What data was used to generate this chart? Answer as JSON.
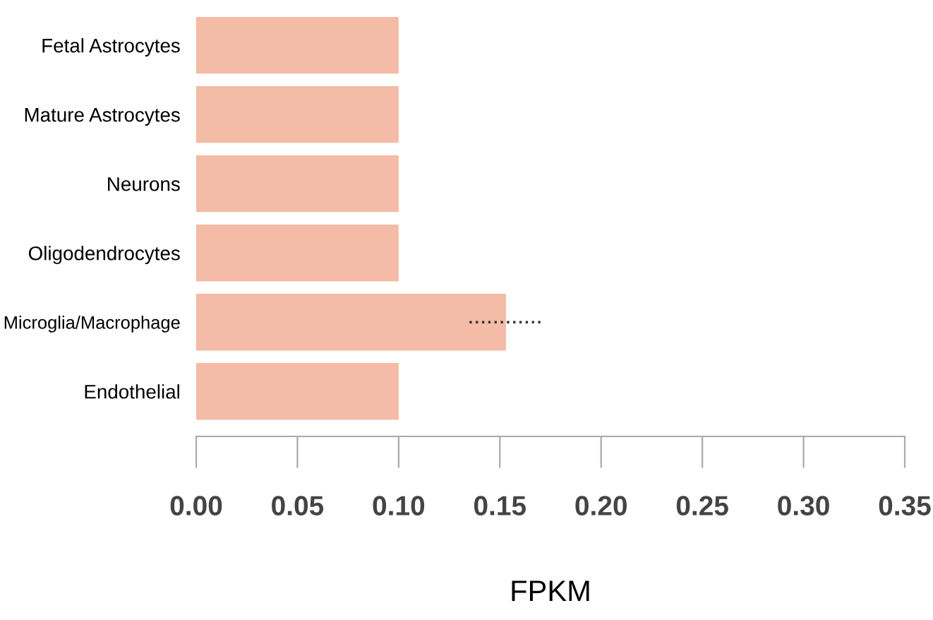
{
  "chart_data": {
    "type": "bar",
    "orientation": "horizontal",
    "xlabel": "FPKM",
    "categories": [
      "Fetal Astrocytes",
      "Mature Astrocytes",
      "Neurons",
      "Oligodendrocytes",
      "Microglia/Macrophage",
      "Endothelial"
    ],
    "values": [
      0.1,
      0.1,
      0.1,
      0.1,
      0.153,
      0.1
    ],
    "errors": [
      null,
      null,
      null,
      null,
      [
        0.135,
        0.171
      ],
      null
    ],
    "color": "#f4bba6",
    "xlim": [
      0,
      0.35
    ],
    "xticks": [
      {
        "value": 0,
        "label": "0.00"
      },
      {
        "value": 0.05,
        "label": "0.05"
      },
      {
        "value": 0.1,
        "label": "0.10"
      },
      {
        "value": 0.15,
        "label": "0.15"
      },
      {
        "value": 0.2,
        "label": "0.20"
      },
      {
        "value": 0.25,
        "label": "0.25"
      },
      {
        "value": 0.3,
        "label": "0.30"
      },
      {
        "value": 0.35,
        "label": "0.35"
      }
    ],
    "grid": false,
    "legend": false
  }
}
